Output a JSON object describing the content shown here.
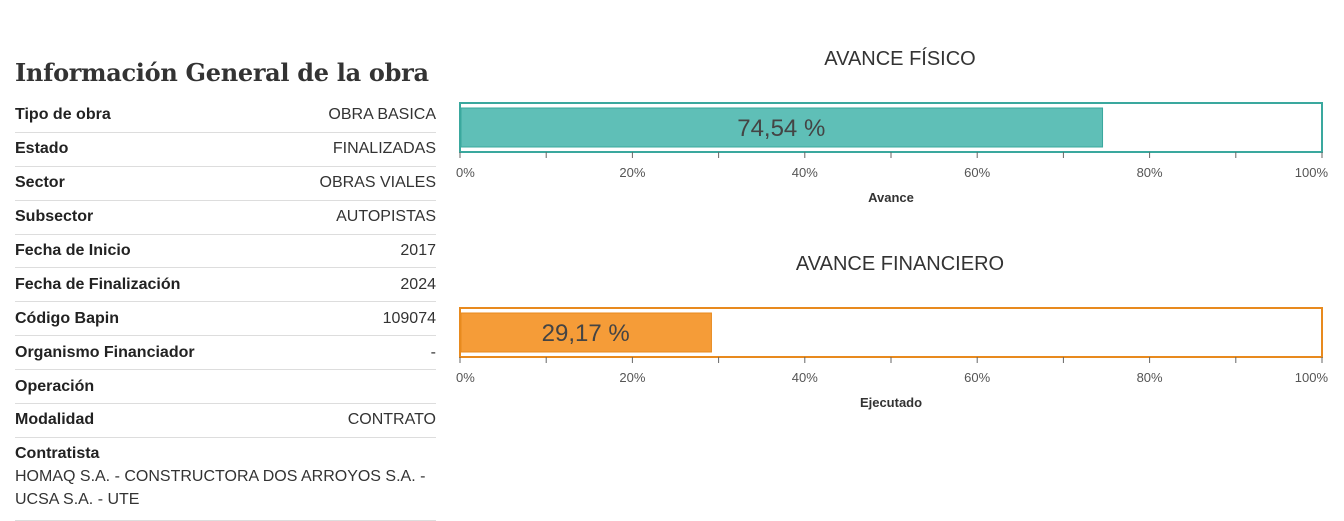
{
  "info": {
    "title": "Información General de la obra",
    "rows": [
      {
        "label": "Tipo de obra",
        "value": "OBRA BASICA"
      },
      {
        "label": "Estado",
        "value": "FINALIZADAS"
      },
      {
        "label": "Sector",
        "value": "OBRAS VIALES"
      },
      {
        "label": "Subsector",
        "value": "AUTOPISTAS"
      },
      {
        "label": "Fecha de Inicio",
        "value": "2017"
      },
      {
        "label": "Fecha de Finalización",
        "value": "2024"
      },
      {
        "label": "Código Bapin",
        "value": "109074"
      },
      {
        "label": "Organismo Financiador",
        "value": "-"
      },
      {
        "label": "Operación",
        "value": ""
      },
      {
        "label": "Modalidad",
        "value": "CONTRATO"
      }
    ],
    "contratista": {
      "label": "Contratista",
      "value": "HOMAQ S.A. - CONSTRUCTORA DOS ARROYOS S.A. - UCSA S.A. - UTE"
    }
  },
  "chart_data": [
    {
      "type": "bar",
      "title": "AVANCE FÍSICO",
      "xlabel": "Avance",
      "value": 74.54,
      "value_label": "74,54 %",
      "xlim": [
        0,
        100
      ],
      "ticks": [
        "0%",
        "20%",
        "40%",
        "60%",
        "80%",
        "100%"
      ],
      "color": "#5fbfb7",
      "border_color": "#3aa89e"
    },
    {
      "type": "bar",
      "title": "AVANCE FINANCIERO",
      "xlabel": "Ejecutado",
      "value": 29.17,
      "value_label": "29,17 %",
      "xlim": [
        0,
        100
      ],
      "ticks": [
        "0%",
        "20%",
        "40%",
        "60%",
        "80%",
        "100%"
      ],
      "color": "#f59c38",
      "border_color": "#e88a1e"
    }
  ]
}
